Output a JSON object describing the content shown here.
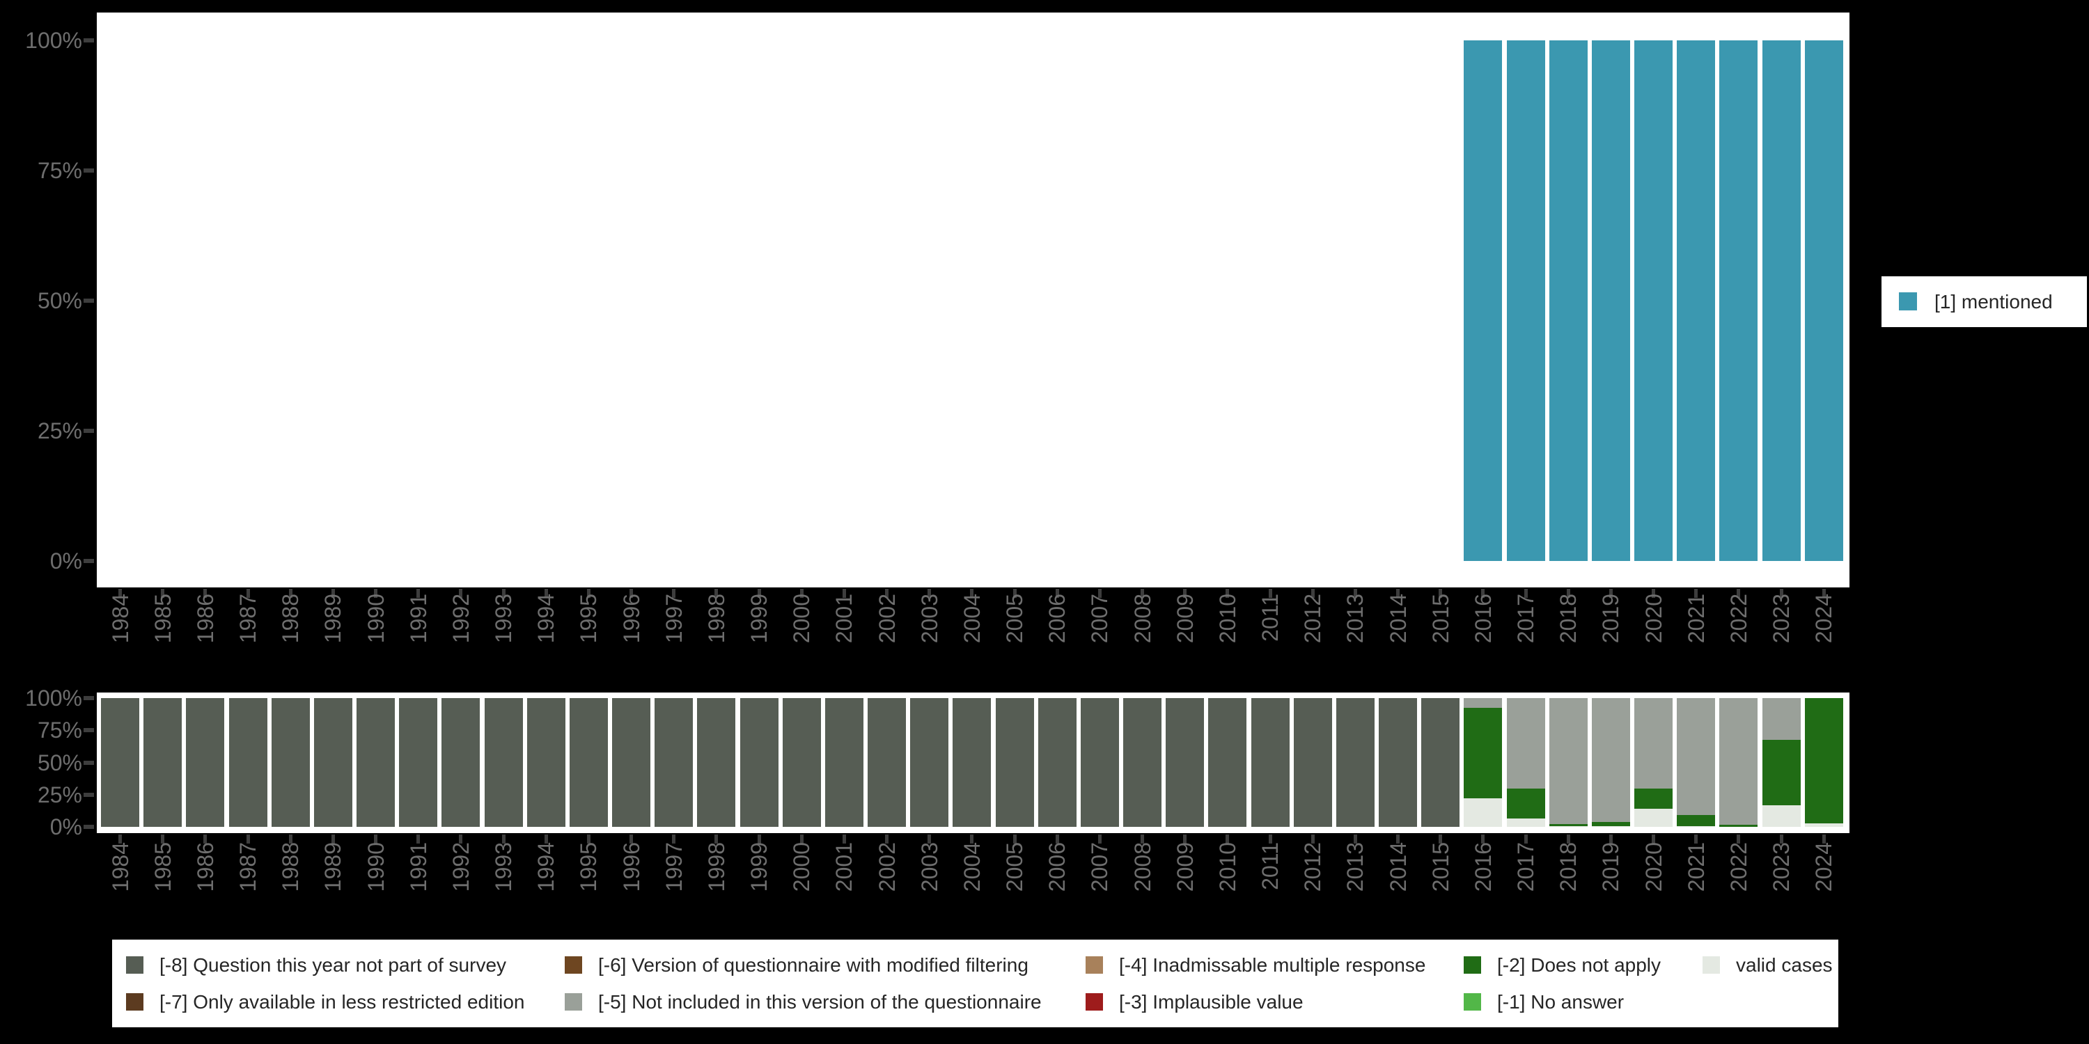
{
  "top_legend": {
    "label": "[1] mentioned"
  },
  "colors": {
    "mentioned": "#3B98B0",
    "cat8": "#565D54",
    "cat7": "#5C3B20",
    "cat6": "#6E4621",
    "cat5": "#9AA099",
    "cat4": "#A8815B",
    "cat3": "#9E1C1C",
    "cat2": "#206C15",
    "cat1": "#52B748",
    "valid": "#E4E9E2",
    "axis_text": "#6E6E6E",
    "tick_mark": "#3D3D3D",
    "legend_text": "#262626",
    "panel_bg": "#FFFFFF",
    "page_bg": "#000000"
  },
  "chart_data": [
    {
      "type": "bar",
      "title": "",
      "xlabel": "",
      "ylabel": "",
      "ylim": [
        0,
        100
      ],
      "grid": false,
      "legend_position": "right",
      "yticks_top_down": [
        "100%",
        "75%",
        "50%",
        "25%",
        "0%"
      ],
      "x": [
        1984,
        1985,
        1986,
        1987,
        1988,
        1989,
        1990,
        1991,
        1992,
        1993,
        1994,
        1995,
        1996,
        1997,
        1998,
        1999,
        2000,
        2001,
        2002,
        2003,
        2004,
        2005,
        2006,
        2007,
        2008,
        2009,
        2010,
        2011,
        2012,
        2013,
        2014,
        2015,
        2016,
        2017,
        2018,
        2019,
        2020,
        2021,
        2022,
        2023,
        2024
      ],
      "series": [
        {
          "name": "[1] mentioned",
          "color_key": "mentioned",
          "values": [
            null,
            null,
            null,
            null,
            null,
            null,
            null,
            null,
            null,
            null,
            null,
            null,
            null,
            null,
            null,
            null,
            null,
            null,
            null,
            null,
            null,
            null,
            null,
            null,
            null,
            null,
            null,
            null,
            null,
            null,
            null,
            null,
            100,
            100,
            100,
            100,
            100,
            100,
            100,
            100,
            100
          ]
        }
      ]
    },
    {
      "type": "bar",
      "stacked": true,
      "title": "",
      "xlabel": "",
      "ylabel": "",
      "ylim": [
        0,
        100
      ],
      "grid": false,
      "legend_position": "bottom",
      "yticks_top_down": [
        "100%",
        "75%",
        "50%",
        "25%",
        "0%"
      ],
      "x": [
        1984,
        1985,
        1986,
        1987,
        1988,
        1989,
        1990,
        1991,
        1992,
        1993,
        1994,
        1995,
        1996,
        1997,
        1998,
        1999,
        2000,
        2001,
        2002,
        2003,
        2004,
        2005,
        2006,
        2007,
        2008,
        2009,
        2010,
        2011,
        2012,
        2013,
        2014,
        2015,
        2016,
        2017,
        2018,
        2019,
        2020,
        2021,
        2022,
        2023,
        2024
      ],
      "series": [
        {
          "name": "valid cases",
          "color_key": "valid",
          "values": [
            0,
            0,
            0,
            0,
            0,
            0,
            0,
            0,
            0,
            0,
            0,
            0,
            0,
            0,
            0,
            0,
            0,
            0,
            0,
            0,
            0,
            0,
            0,
            0,
            0,
            0,
            0,
            0,
            0,
            0,
            0,
            0,
            22.2,
            6.5,
            0.5,
            0.5,
            14,
            0.7,
            0,
            17,
            2.5
          ]
        },
        {
          "name": "[-1] No answer",
          "color_key": "cat1",
          "values": [
            0,
            0,
            0,
            0,
            0,
            0,
            0,
            0,
            0,
            0,
            0,
            0,
            0,
            0,
            0,
            0,
            0,
            0,
            0,
            0,
            0,
            0,
            0,
            0,
            0,
            0,
            0,
            0,
            0,
            0,
            0,
            0,
            0,
            0,
            0,
            0,
            0,
            0,
            0,
            0,
            0
          ]
        },
        {
          "name": "[-2] Does not apply",
          "color_key": "cat2",
          "values": [
            0,
            0,
            0,
            0,
            0,
            0,
            0,
            0,
            0,
            0,
            0,
            0,
            0,
            0,
            0,
            0,
            0,
            0,
            0,
            0,
            0,
            0,
            0,
            0,
            0,
            0,
            0,
            0,
            0,
            0,
            0,
            0,
            70.2,
            23.4,
            1.6,
            3.2,
            15.7,
            8.5,
            1.6,
            50.6,
            97.5
          ]
        },
        {
          "name": "[-3] Implausible value",
          "color_key": "cat3",
          "values": [
            0,
            0,
            0,
            0,
            0,
            0,
            0,
            0,
            0,
            0,
            0,
            0,
            0,
            0,
            0,
            0,
            0,
            0,
            0,
            0,
            0,
            0,
            0,
            0,
            0,
            0,
            0,
            0,
            0,
            0,
            0,
            0,
            0,
            0,
            0,
            0,
            0,
            0,
            0,
            0,
            0
          ]
        },
        {
          "name": "[-4] Inadmissable multiple response",
          "color_key": "cat4",
          "values": [
            0,
            0,
            0,
            0,
            0,
            0,
            0,
            0,
            0,
            0,
            0,
            0,
            0,
            0,
            0,
            0,
            0,
            0,
            0,
            0,
            0,
            0,
            0,
            0,
            0,
            0,
            0,
            0,
            0,
            0,
            0,
            0,
            0,
            0,
            0,
            0,
            0,
            0,
            0,
            0,
            0
          ]
        },
        {
          "name": "[-5] Not included in this version of the questionnaire",
          "color_key": "cat5",
          "values": [
            0,
            0,
            0,
            0,
            0,
            0,
            0,
            0,
            0,
            0,
            0,
            0,
            0,
            0,
            0,
            0,
            0,
            0,
            0,
            0,
            0,
            0,
            0,
            0,
            0,
            0,
            0,
            0,
            0,
            0,
            0,
            0,
            7.6,
            70.1,
            97.9,
            96.3,
            70.3,
            90.8,
            98.4,
            32.4,
            0
          ]
        },
        {
          "name": "[-6] Version of questionnaire with modified filtering",
          "color_key": "cat6",
          "values": [
            0,
            0,
            0,
            0,
            0,
            0,
            0,
            0,
            0,
            0,
            0,
            0,
            0,
            0,
            0,
            0,
            0,
            0,
            0,
            0,
            0,
            0,
            0,
            0,
            0,
            0,
            0,
            0,
            0,
            0,
            0,
            0,
            0,
            0,
            0,
            0,
            0,
            0,
            0,
            0,
            0
          ]
        },
        {
          "name": "[-7] Only available in less restricted edition",
          "color_key": "cat7",
          "values": [
            0,
            0,
            0,
            0,
            0,
            0,
            0,
            0,
            0,
            0,
            0,
            0,
            0,
            0,
            0,
            0,
            0,
            0,
            0,
            0,
            0,
            0,
            0,
            0,
            0,
            0,
            0,
            0,
            0,
            0,
            0,
            0,
            0,
            0,
            0,
            0,
            0,
            0,
            0,
            0,
            0
          ]
        },
        {
          "name": "[-8] Question this year not part of survey",
          "color_key": "cat8",
          "values": [
            100,
            100,
            100,
            100,
            100,
            100,
            100,
            100,
            100,
            100,
            100,
            100,
            100,
            100,
            100,
            100,
            100,
            100,
            100,
            100,
            100,
            100,
            100,
            100,
            100,
            100,
            100,
            100,
            100,
            100,
            100,
            100,
            0,
            0,
            0,
            0,
            0,
            0,
            0,
            0,
            0
          ]
        }
      ]
    }
  ],
  "legend_rows": [
    [
      {
        "label": "[-8] Question this year not part of survey",
        "color_key": "cat8"
      },
      {
        "label": "[-6] Version of questionnaire with modified filtering",
        "color_key": "cat6"
      },
      {
        "label": "[-4] Inadmissable multiple response",
        "color_key": "cat4"
      },
      {
        "label": "[-2] Does not apply",
        "color_key": "cat2"
      },
      {
        "label": "valid cases",
        "color_key": "valid"
      }
    ],
    [
      {
        "label": "[-7] Only available in less restricted edition",
        "color_key": "cat7"
      },
      {
        "label": "[-5] Not included in this version of the questionnaire",
        "color_key": "cat5"
      },
      {
        "label": "[-3] Implausible value",
        "color_key": "cat3"
      },
      {
        "label": "[-1] No answer",
        "color_key": "cat1"
      }
    ]
  ]
}
